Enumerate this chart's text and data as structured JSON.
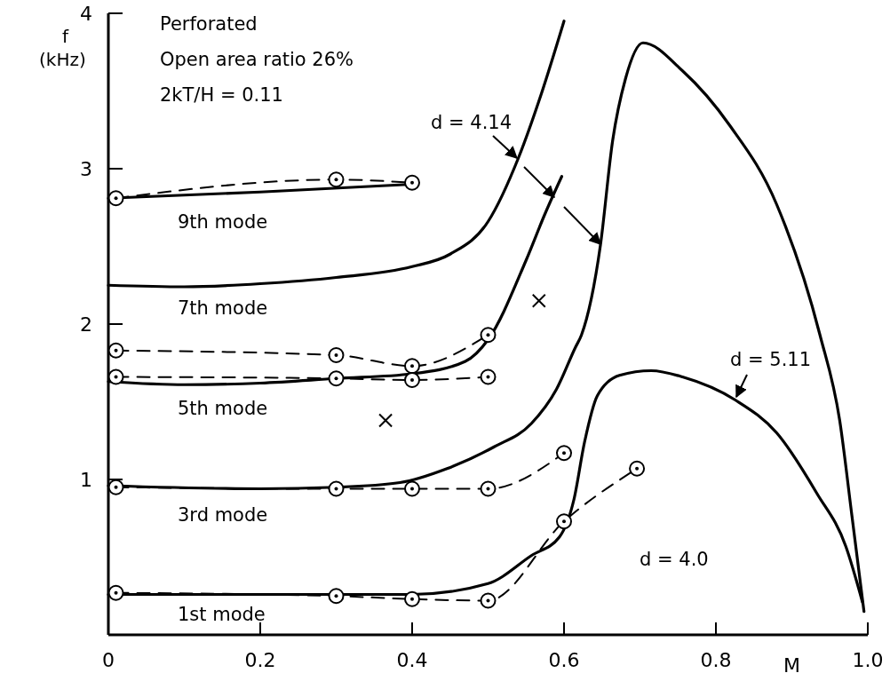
{
  "chart_data": {
    "type": "line",
    "xlabel": "M",
    "ylabel": "f (kHz)",
    "xlim": [
      0,
      1
    ],
    "ylim": [
      0,
      4
    ],
    "xticks": [
      0,
      0.2,
      0.4,
      0.6,
      0.8,
      {
        "value": 1,
        "label": "1.0"
      }
    ],
    "yticks": [
      1,
      2,
      3,
      4
    ],
    "grid": false,
    "annotations": [
      "Perforated",
      "Open area ratio 26%",
      "2kT/H = 0.11",
      "9th mode",
      "7th mode",
      "5th mode",
      "3rd mode",
      "1st mode",
      "d = 4.14",
      "d = 5.11",
      "d = 4.0"
    ],
    "series": [
      {
        "color": "#000000",
        "line_style": "solid",
        "marker": "none",
        "x": [
          0,
          0.2,
          0.4
        ],
        "values": [
          2.81,
          2.85,
          2.9
        ]
      },
      {
        "color": "#000000",
        "line_style": "solid",
        "marker": "none",
        "x": [
          0,
          0.1,
          0.2,
          0.3,
          0.4,
          0.45,
          0.5,
          0.54,
          0.57,
          0.6
        ],
        "values": [
          2.25,
          2.24,
          2.26,
          2.3,
          2.37,
          2.45,
          2.66,
          3.07,
          3.48,
          3.95
        ]
      },
      {
        "color": "#000000",
        "line_style": "solid",
        "marker": "none",
        "x": [
          0,
          0.1,
          0.2,
          0.3,
          0.4,
          0.47,
          0.5,
          0.55,
          0.575,
          0.597
        ],
        "values": [
          1.63,
          1.61,
          1.62,
          1.65,
          1.68,
          1.76,
          1.9,
          2.41,
          2.71,
          2.95
        ]
      },
      {
        "color": "#000000",
        "line_style": "solid",
        "marker": "none",
        "x": [
          0,
          0.2,
          0.3,
          0.384,
          0.446,
          0.508,
          0.557,
          0.59,
          0.615,
          0.623,
          0.648,
          0.664,
          0.681,
          0.704,
          0.756,
          0.818,
          0.88,
          0.937,
          0.963,
          0.979,
          0.995
        ],
        "values": [
          0.96,
          0.94,
          0.95,
          0.98,
          1.07,
          1.21,
          1.36,
          1.58,
          1.85,
          1.93,
          2.51,
          3.18,
          3.58,
          3.81,
          3.63,
          3.28,
          2.77,
          1.93,
          1.38,
          0.77,
          0.15
        ]
      },
      {
        "color": "#000000",
        "line_style": "solid",
        "marker": "none",
        "x": [
          0,
          0.3,
          0.4,
          0.5,
          0.557,
          0.594,
          0.613,
          0.627,
          0.644,
          0.673,
          0.715,
          0.756,
          0.826,
          0.88,
          0.933,
          0.971,
          0.993
        ],
        "values": [
          0.26,
          0.26,
          0.26,
          0.33,
          0.51,
          0.63,
          0.87,
          1.24,
          1.54,
          1.67,
          1.7,
          1.66,
          1.51,
          1.3,
          0.91,
          0.57,
          0.21
        ]
      },
      {
        "color": "#000000",
        "line_style": "dashed",
        "marker": "circle",
        "x": [
          0.01,
          0.3,
          0.4
        ],
        "values": [
          2.81,
          2.93,
          2.91
        ]
      },
      {
        "color": "#000000",
        "line_style": "dashed",
        "marker": "circle",
        "x": [
          0.01,
          0.3,
          0.4,
          0.5
        ],
        "values": [
          1.83,
          1.8,
          1.73,
          1.93
        ]
      },
      {
        "color": "#000000",
        "line_style": "dashed",
        "marker": "circle",
        "x": [
          0.01,
          0.3,
          0.4,
          0.5
        ],
        "values": [
          1.66,
          1.65,
          1.64,
          1.66
        ]
      },
      {
        "color": "#000000",
        "line_style": "dashed",
        "marker": "circle",
        "x": [
          0.01,
          0.3,
          0.4,
          0.5,
          0.6
        ],
        "values": [
          0.95,
          0.94,
          0.94,
          0.94,
          1.17
        ]
      },
      {
        "color": "#000000",
        "line_style": "dashed",
        "marker": "circle",
        "x": [
          0.01,
          0.3,
          0.4,
          0.5,
          0.6,
          0.696
        ],
        "values": [
          0.27,
          0.25,
          0.23,
          0.22,
          0.73,
          1.07
        ]
      },
      {
        "type": "scatter",
        "color": "#000000",
        "marker": "cross",
        "x": [
          0.365,
          0.567
        ],
        "values": [
          1.38,
          2.15
        ]
      }
    ]
  }
}
